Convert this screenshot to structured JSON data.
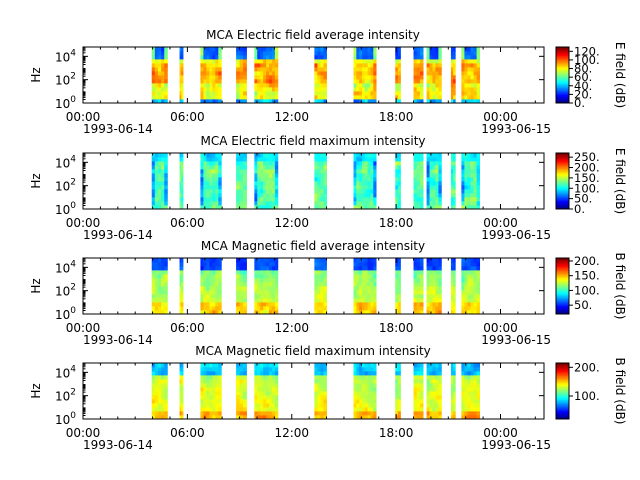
{
  "x_ticks": [
    "00:00",
    "06:00",
    "12:00",
    "18:00",
    "00:00"
  ],
  "x_tick_hours": [
    0,
    6,
    12,
    18,
    24
  ],
  "date_start": "1993-06-14",
  "date_end": "1993-06-15",
  "y_axis": {
    "label": "Hz",
    "ticks": [
      {
        "base": "10",
        "exp": "0",
        "log10": 0
      },
      {
        "base": "10",
        "exp": "2",
        "log10": 2
      },
      {
        "base": "10",
        "exp": "4",
        "log10": 4
      }
    ],
    "log_range": [
      0,
      4.8
    ],
    "scale": "log"
  },
  "chart_data": [
    {
      "type": "heatmap",
      "title": "MCA  Electric field average intensity",
      "xlabel": "",
      "ylabel": "Hz",
      "colorbar": {
        "label": "E field (dB)",
        "ticks": [
          "120.",
          "100.",
          "80.",
          "60.",
          "40.",
          "20.",
          "0."
        ],
        "tick_values": [
          120,
          100,
          80,
          60,
          40,
          20,
          0
        ],
        "range": [
          0,
          130
        ]
      },
      "profile": "e_avg"
    },
    {
      "type": "heatmap",
      "title": "MCA  Electric field maximum intensity",
      "xlabel": "",
      "ylabel": "Hz",
      "colorbar": {
        "label": "E field (dB)",
        "ticks": [
          "250.",
          "200.",
          "150.",
          "100.",
          "50.",
          "0."
        ],
        "tick_values": [
          250,
          200,
          150,
          100,
          50,
          0
        ],
        "range": [
          0,
          270
        ]
      },
      "profile": "e_max"
    },
    {
      "type": "heatmap",
      "title": "MCA  Magnetic field average intensity",
      "xlabel": "",
      "ylabel": "Hz",
      "colorbar": {
        "label": "B field (dB)",
        "ticks": [
          "200.",
          "150.",
          "100.",
          "50."
        ],
        "tick_values": [
          200,
          150,
          100,
          50
        ],
        "range": [
          20,
          210
        ]
      },
      "profile": "b_avg"
    },
    {
      "type": "heatmap",
      "title": "MCA  Magnetic field maximum intensity",
      "xlabel": "",
      "ylabel": "Hz",
      "colorbar": {
        "label": "B field (dB)",
        "ticks": [
          "200.",
          "100."
        ],
        "tick_values": [
          200,
          100
        ],
        "range": [
          20,
          215
        ]
      },
      "profile": "b_max"
    }
  ],
  "data_intervals_hours": [
    [
      3.95,
      4.85
    ],
    [
      5.55,
      5.75
    ],
    [
      6.75,
      7.95
    ],
    [
      8.8,
      9.4
    ],
    [
      9.85,
      11.2
    ],
    [
      13.3,
      14.0
    ],
    [
      15.55,
      16.85
    ],
    [
      17.95,
      18.25
    ],
    [
      19.0,
      19.55
    ],
    [
      19.75,
      20.6
    ],
    [
      21.15,
      21.4
    ],
    [
      21.75,
      22.8
    ]
  ]
}
